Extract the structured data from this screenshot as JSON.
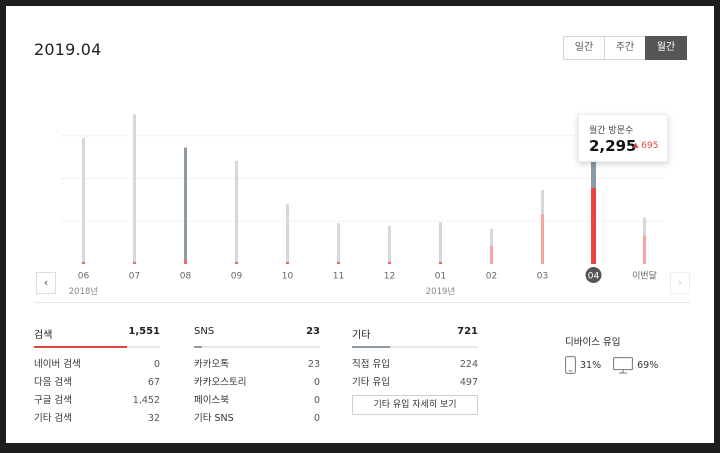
{
  "header": {
    "date": "2019.04",
    "tabs": [
      {
        "label": "일간",
        "active": false
      },
      {
        "label": "주간",
        "active": false
      },
      {
        "label": "월간",
        "active": true
      }
    ]
  },
  "chart_data": {
    "type": "bar",
    "categories": [
      "06",
      "07",
      "08",
      "09",
      "10",
      "11",
      "12",
      "01",
      "02",
      "03",
      "04",
      "이번달"
    ],
    "year_labels": [
      {
        "label": "2018년",
        "under": "06"
      },
      {
        "label": "2019년",
        "under": "01"
      }
    ],
    "series": [
      {
        "values": [
          2650,
          3150,
          2450,
          2170,
          1260,
          860,
          800,
          880,
          740,
          1560,
          2295,
          980
        ]
      },
      {
        "values": [
          45,
          45,
          100,
          45,
          45,
          45,
          45,
          45,
          380,
          1050,
          1600,
          600
        ]
      }
    ],
    "highlight_index": 2,
    "selected_index": 10,
    "ymax": 3200,
    "gridlines": [
      2700,
      1800,
      900
    ]
  },
  "tooltip": {
    "label": "월간 방문수",
    "value": "2,295",
    "change": "695",
    "change_arrow": "▲"
  },
  "nav": {
    "prev": "‹",
    "next": "›"
  },
  "stats": {
    "search": {
      "title": "검색",
      "total": "1,551",
      "fill_ratio": 0.74,
      "fill_color": "#e0453d",
      "rows": [
        {
          "label": "네이버 검색",
          "value": "0"
        },
        {
          "label": "다음 검색",
          "value": "67"
        },
        {
          "label": "구글 검색",
          "value": "1,452"
        },
        {
          "label": "기타 검색",
          "value": "32"
        }
      ]
    },
    "sns": {
      "title": "SNS",
      "total": "23",
      "fill_ratio": 0.06,
      "fill_color": "#8a9aa6",
      "rows": [
        {
          "label": "카카오톡",
          "value": "23"
        },
        {
          "label": "카카오스토리",
          "value": "0"
        },
        {
          "label": "페이스북",
          "value": "0"
        },
        {
          "label": "기타 SNS",
          "value": "0"
        }
      ]
    },
    "etc": {
      "title": "기타",
      "total": "721",
      "fill_ratio": 0.3,
      "fill_color": "#8a9aa6",
      "rows": [
        {
          "label": "직접 유입",
          "value": "224"
        },
        {
          "label": "기타 유입",
          "value": "497"
        }
      ],
      "detail_button": "기타 유입 자세히 보기"
    }
  },
  "device": {
    "title": "디바이스 유입",
    "mobile": "31%",
    "pc": "69%"
  }
}
